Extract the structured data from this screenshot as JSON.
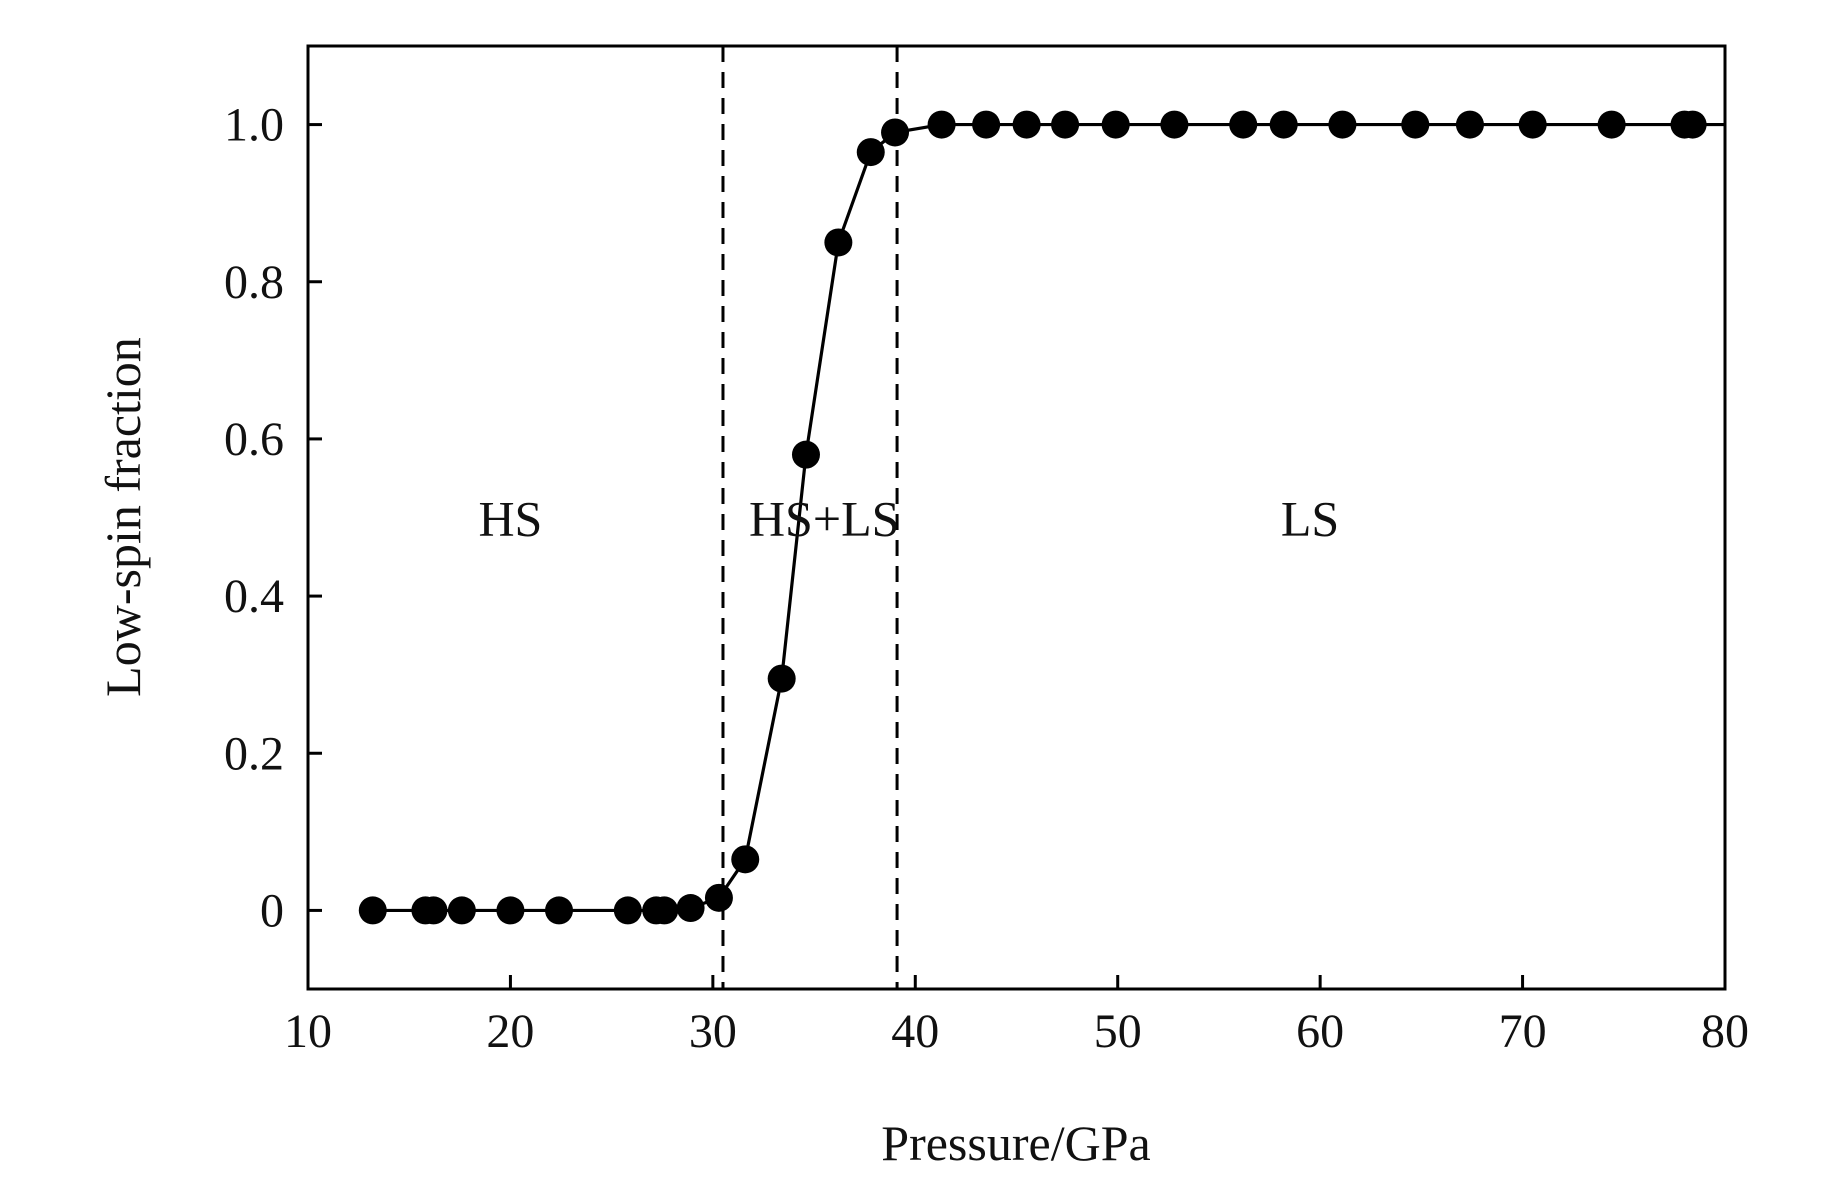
{
  "chart_data": {
    "type": "line",
    "xlabel": "Pressure/GPa",
    "ylabel": "Low-spin fraction",
    "xlim": [
      10,
      80
    ],
    "ylim": [
      -0.1,
      1.1
    ],
    "xticks": [
      10,
      20,
      30,
      40,
      50,
      60,
      70,
      80
    ],
    "xtick_labels": [
      "10",
      "20",
      "30",
      "40",
      "50",
      "60",
      "70",
      "80"
    ],
    "yticks": [
      0,
      0.2,
      0.4,
      0.6,
      0.8,
      1.0
    ],
    "ytick_labels": [
      "0",
      "0.2",
      "0.4",
      "0.6",
      "0.8",
      "1.0"
    ],
    "grid": false,
    "series": [
      {
        "marker": "filled-circle",
        "line": "solid",
        "x": [
          13.2,
          15.8,
          16.2,
          17.6,
          20.0,
          22.4,
          25.8,
          27.2,
          27.6,
          28.9,
          30.3,
          31.6,
          33.4,
          34.6,
          36.2,
          37.8,
          39.0,
          41.3,
          43.5,
          45.5,
          47.4,
          49.9,
          52.8,
          56.2,
          58.2,
          61.1,
          64.7,
          67.4,
          70.5,
          74.4,
          78.0,
          78.4
        ],
        "y": [
          0.0,
          0.0,
          0.0,
          0.0,
          0.0,
          0.0,
          0.0,
          0.0,
          0.0,
          0.003,
          0.016,
          0.065,
          0.295,
          0.58,
          0.85,
          0.965,
          0.99,
          1.0,
          1.0,
          1.0,
          1.0,
          1.0,
          1.0,
          1.0,
          1.0,
          1.0,
          1.0,
          1.0,
          1.0,
          1.0,
          1.0,
          1.0
        ],
        "color": "#000000"
      }
    ],
    "reference_lines": [
      {
        "axis": "x",
        "value": 30.5,
        "style": "dashed"
      },
      {
        "axis": "x",
        "value": 39.1,
        "style": "dashed"
      }
    ],
    "annotations": [
      {
        "text": "HS",
        "x": 20.0,
        "y": 0.5
      },
      {
        "text": "HS+LS",
        "x": 35.5,
        "y": 0.5
      },
      {
        "text": "LS",
        "x": 59.5,
        "y": 0.5
      }
    ]
  }
}
